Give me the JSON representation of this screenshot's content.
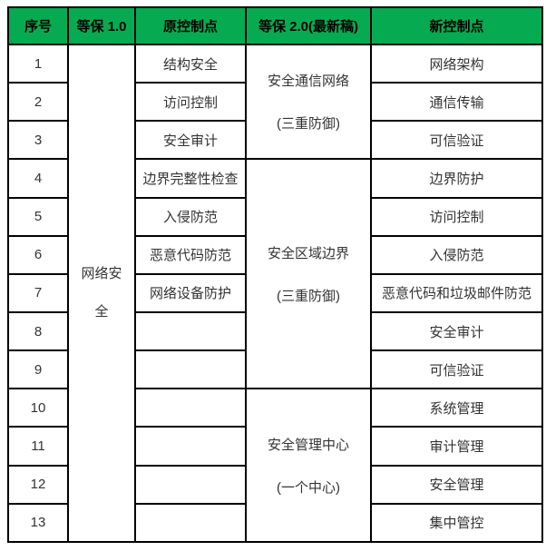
{
  "colors": {
    "header_bg": "#06AB51",
    "header_text": "#000000",
    "green": "#2DB26E",
    "red": "#F92C1E",
    "gray": "#C6C6C6",
    "black": "#333333",
    "border": "#000000"
  },
  "table": {
    "headers": [
      "序号",
      "等保 1.0",
      "原控制点",
      "等保 2.0(最新稿)",
      "新控制点"
    ],
    "dengbao1_group": "网络安全",
    "dengbao2_groups": [
      {
        "title": "安全通信网络",
        "subtitle": "(三重防御)"
      },
      {
        "title": "安全区域边界",
        "subtitle": "(三重防御)"
      },
      {
        "title": "安全管理中心",
        "subtitle": "(一个中心)"
      }
    ],
    "rows": [
      {
        "no": "1",
        "old": "结构安全",
        "old_color": "green",
        "new": "网络架构",
        "new_color": "green"
      },
      {
        "no": "2",
        "old": "访问控制",
        "new": "通信传输",
        "new_color": "red"
      },
      {
        "no": "3",
        "old": "安全审计",
        "new": "可信验证",
        "new_color": "red"
      },
      {
        "no": "4",
        "old": "边界完整性检查",
        "old_color": "green",
        "new": "边界防护",
        "new_color": "green"
      },
      {
        "no": "5",
        "old": "入侵防范",
        "new": "访问控制"
      },
      {
        "no": "6",
        "old": "恶意代码防范",
        "new": "入侵防范"
      },
      {
        "no": "7",
        "old": "网络设备防护",
        "old_color": "gray",
        "new": "恶意代码和垃圾邮件防范"
      },
      {
        "no": "8",
        "old": "",
        "new": "安全审计"
      },
      {
        "no": "9",
        "old": "",
        "new": "可信验证",
        "new_color": "red"
      },
      {
        "no": "10",
        "old": "",
        "new": "系统管理",
        "new_color": "red"
      },
      {
        "no": "11",
        "old": "",
        "new": "审计管理",
        "new_color": "red"
      },
      {
        "no": "12",
        "old": "",
        "new": "安全管理",
        "new_color": "red"
      },
      {
        "no": "13",
        "old": "",
        "new": "集中管控",
        "new_color": "red"
      }
    ]
  }
}
